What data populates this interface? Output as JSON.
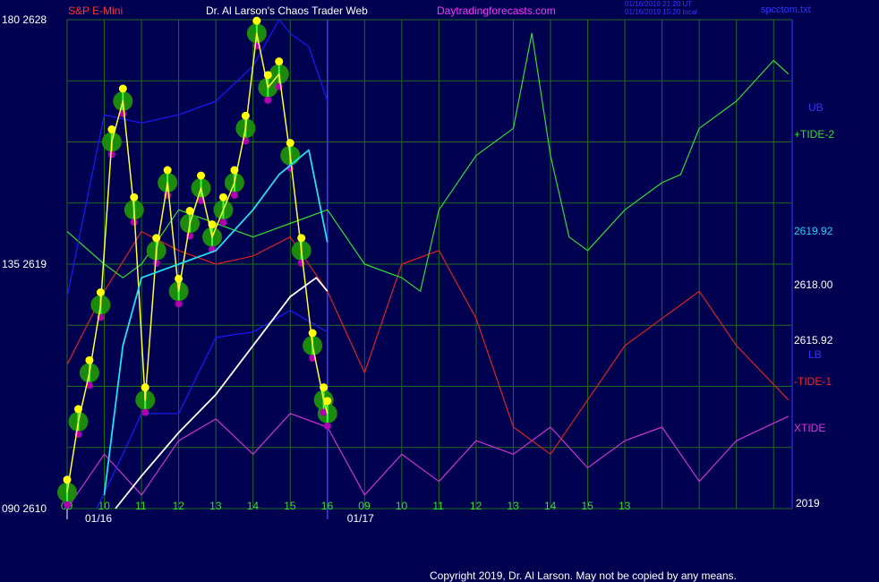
{
  "colors": {
    "background": "#000050",
    "grid": "#1f6b1f",
    "axis": "#3a3aff",
    "candles_glow": "#1c8a0c",
    "candles_bar": "#34ff34",
    "highs": "#ffff00",
    "lows": "#b000b0",
    "fast_avg": "#ffff33",
    "mid_avg": "#ff33ff",
    "cyan_avg": "#22e0f0",
    "slow_avg": "#ffffff",
    "ub": "#1a1aff",
    "lb": "#1a1aff",
    "tide2": "#33dd33",
    "tide1": "#dd2222",
    "xtide": "#cc33cc"
  },
  "header": {
    "symbol": "S&P E-Mini",
    "title": "Dr. Al Larson's Chaos Trader Web",
    "site": "Daytradingforecasts.com",
    "updated_utc": "01/16/2019 21:20 UT",
    "updated_local": "01/16/2019 15:20 local",
    "file": "spcctom.txt"
  },
  "footer": {
    "copyright": "Copyright 2019, Dr. Al Larson. May not be copied by any means."
  },
  "chart_data": {
    "type": "line",
    "title": "S&P E-Mini",
    "y_axis_left": {
      "ticks": [
        {
          "angle": "180",
          "price": "2628"
        },
        {
          "angle": "135",
          "price": "2619"
        },
        {
          "angle": "090",
          "price": "2610"
        }
      ],
      "range": [
        2610,
        2628
      ]
    },
    "x_axis": {
      "hour_ticks": [
        "09",
        "10",
        "11",
        "12",
        "13",
        "14",
        "15",
        "16",
        "09",
        "10",
        "11",
        "12",
        "13",
        "14",
        "15",
        "13"
      ],
      "date_labels": [
        "01/16",
        "01/17"
      ],
      "year_label": "2019"
    },
    "right_labels": [
      {
        "text": "UB",
        "color": "#3333ff"
      },
      {
        "text": "+TIDE-2",
        "color": "#33dd33"
      },
      {
        "text": "2619.92",
        "color": "#22ccff"
      },
      {
        "text": "2618.00",
        "color": "#ffffff"
      },
      {
        "text": "2615.92",
        "color": "#ffffff"
      },
      {
        "text": "LB",
        "color": "#3333ff"
      },
      {
        "text": "-TIDE-1",
        "color": "#ff2222"
      },
      {
        "text": "XTIDE",
        "color": "#dd33dd"
      }
    ],
    "series": [
      {
        "name": "S&P E-Mini",
        "x": [
          9.0,
          9.3,
          9.6,
          9.9,
          10.2,
          10.5,
          10.8,
          11.1,
          11.4,
          11.7,
          12.0,
          12.3,
          12.6,
          12.9,
          13.2,
          13.5,
          13.8,
          14.1,
          14.4,
          14.7,
          15.0,
          15.3,
          15.6,
          15.9,
          16.0
        ],
        "values": [
          2610.6,
          2613.2,
          2615.0,
          2617.5,
          2623.5,
          2625.0,
          2621.0,
          2614.0,
          2619.5,
          2622.0,
          2618.0,
          2620.5,
          2621.8,
          2620.0,
          2621.0,
          2622.0,
          2624.0,
          2627.5,
          2625.5,
          2626.0,
          2623.0,
          2619.5,
          2616.0,
          2614.0,
          2613.5
        ]
      },
      {
        "name": "UB",
        "x": [
          9.0,
          10.0,
          11.0,
          12.0,
          13.0,
          14.0,
          14.7,
          15.0,
          15.5,
          16.0
        ],
        "values": [
          2617.8,
          2624.5,
          2624.2,
          2624.5,
          2625.0,
          2626.3,
          2628.0,
          2627.5,
          2627.0,
          2625.0
        ]
      },
      {
        "name": "LB",
        "x": [
          9.8,
          10.5,
          11.0,
          12.0,
          13.0,
          14.0,
          15.0,
          16.0
        ],
        "values": [
          2610.0,
          2612.0,
          2613.5,
          2613.5,
          2616.3,
          2616.5,
          2617.3,
          2616.5
        ]
      },
      {
        "name": "2619.92",
        "x": [
          10.0,
          10.5,
          11.0,
          12.0,
          13.0,
          14.0,
          14.7,
          15.5,
          16.0
        ],
        "values": [
          2610.5,
          2616.0,
          2618.5,
          2619.0,
          2619.5,
          2621.0,
          2622.3,
          2623.2,
          2619.8
        ]
      },
      {
        "name": "2618.00",
        "x": [
          10.3,
          11.0,
          12.0,
          13.0,
          14.0,
          15.0,
          15.7,
          16.0
        ],
        "values": [
          2610.0,
          2611.2,
          2612.8,
          2614.2,
          2616.0,
          2617.8,
          2618.5,
          2618.0
        ]
      },
      {
        "name": "+TIDE-2",
        "x": [
          9.0,
          10.0,
          10.5,
          11.0,
          12.0,
          13.0,
          14.0,
          15.0,
          16.0,
          17.0,
          18.0,
          18.5,
          19.0,
          20.0,
          21.0,
          21.5,
          22.0,
          22.5,
          23.0,
          24.0,
          25.0,
          25.5,
          26.0,
          27.0,
          28.0,
          28.4
        ],
        "values": [
          2620.2,
          2619.0,
          2618.5,
          2619.0,
          2621.0,
          2620.5,
          2620.0,
          2620.5,
          2621.0,
          2619.0,
          2618.5,
          2618.0,
          2621.0,
          2623.0,
          2624.0,
          2627.5,
          2623.0,
          2620.0,
          2619.5,
          2621.0,
          2622.0,
          2622.3,
          2624.0,
          2625.0,
          2626.5,
          2626.0
        ],
        "note_ignore": ""
      },
      {
        "name": "-TIDE-1",
        "x": [
          9.0,
          10.0,
          11.0,
          12.0,
          13.0,
          14.0,
          15.0,
          16.0,
          17.0,
          18.0,
          19.0,
          20.0,
          21.0,
          22.0,
          23.0,
          24.0,
          25.0,
          26.0,
          27.0,
          28.4
        ],
        "values": [
          2615.3,
          2618.0,
          2620.2,
          2619.5,
          2619.0,
          2619.3,
          2620.0,
          2618.0,
          2615.0,
          2619.0,
          2619.5,
          2617.0,
          2613.0,
          2612.0,
          2614.0,
          2616.0,
          2617.0,
          2618.0,
          2616.0,
          2614.0
        ]
      },
      {
        "name": "XTIDE",
        "x": [
          9.0,
          10.0,
          11.0,
          12.0,
          13.0,
          14.0,
          15.0,
          16.0,
          17.0,
          18.0,
          19.0,
          20.0,
          21.0,
          22.0,
          23.0,
          24.0,
          25.0,
          26.0,
          27.0,
          28.4
        ],
        "values": [
          2610.0,
          2612.0,
          2610.5,
          2612.5,
          2613.3,
          2612.0,
          2613.5,
          2613.0,
          2610.5,
          2612.0,
          2611.0,
          2612.5,
          2612.0,
          2613.0,
          2611.5,
          2612.5,
          2613.0,
          2611.0,
          2612.5,
          2613.4
        ]
      }
    ],
    "grid": true,
    "legend_position": "right"
  }
}
